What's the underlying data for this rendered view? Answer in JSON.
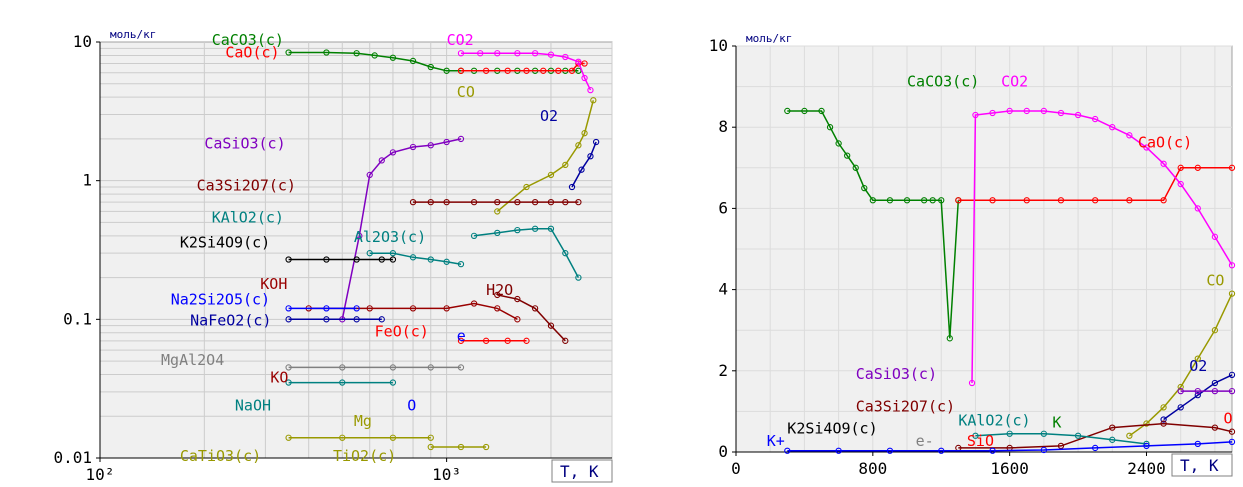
{
  "chart_data": [
    {
      "type": "line",
      "x_scale": "log",
      "y_scale": "log",
      "ylabel": "моль/кг",
      "xlabel": "T, K",
      "xlim": [
        100,
        3000
      ],
      "ylim": [
        0.01,
        10
      ],
      "grid": true,
      "x_ticks": [
        {
          "value": 100,
          "label": "10²"
        },
        {
          "value": 1000,
          "label": "10³"
        }
      ],
      "y_ticks": [
        {
          "value": 10,
          "label": "10"
        },
        {
          "value": 1,
          "label": "1"
        },
        {
          "value": 0.1,
          "label": "0.1"
        },
        {
          "value": 0.01,
          "label": "0.01"
        }
      ],
      "series": [
        {
          "name": "CaCO3(c)",
          "color": "#008000",
          "x": [
            350,
            450,
            550,
            620,
            700,
            800,
            900,
            1000,
            1100,
            1200,
            1400,
            1600,
            1800,
            2000,
            2200,
            2400
          ],
          "y": [
            8.4,
            8.4,
            8.3,
            8.0,
            7.7,
            7.3,
            6.6,
            6.2,
            6.2,
            6.2,
            6.2,
            6.2,
            6.2,
            6.2,
            6.2,
            6.2
          ]
        },
        {
          "name": "CaO(c)",
          "color": "#ff0000",
          "x": [
            1100,
            1300,
            1500,
            1700,
            1900,
            2100,
            2300,
            2400,
            2500
          ],
          "y": [
            6.2,
            6.2,
            6.2,
            6.2,
            6.2,
            6.2,
            6.2,
            7.0,
            7.0
          ]
        },
        {
          "name": "CO2",
          "color": "#ff00ff",
          "x": [
            1100,
            1250,
            1400,
            1600,
            1800,
            2000,
            2200,
            2400,
            2500,
            2600
          ],
          "y": [
            8.3,
            8.3,
            8.3,
            8.3,
            8.3,
            8.1,
            7.8,
            7.2,
            5.5,
            4.5
          ]
        },
        {
          "name": "CO",
          "color": "#999900",
          "x": [
            1400,
            1700,
            2000,
            2200,
            2400,
            2500,
            2650
          ],
          "y": [
            0.6,
            0.9,
            1.1,
            1.3,
            1.8,
            2.2,
            3.8
          ]
        },
        {
          "name": "O2",
          "color": "#0000a0",
          "x": [
            2300,
            2450,
            2600,
            2700
          ],
          "y": [
            0.9,
            1.2,
            1.5,
            1.9
          ]
        },
        {
          "name": "CaSiO3(c)",
          "color": "#8000c0",
          "x": [
            500,
            560,
            600,
            650,
            700,
            800,
            900,
            1000,
            1100
          ],
          "y": [
            0.1,
            0.4,
            1.1,
            1.4,
            1.6,
            1.75,
            1.8,
            1.9,
            2.0
          ]
        },
        {
          "name": "Ca3Si2O7(c)",
          "color": "#800000",
          "x": [
            800,
            900,
            1000,
            1200,
            1400,
            1600,
            1800,
            2000,
            2200,
            2400
          ],
          "y": [
            0.7,
            0.7,
            0.7,
            0.7,
            0.7,
            0.7,
            0.7,
            0.7,
            0.7,
            0.7
          ]
        },
        {
          "name": "KAlO2(c)",
          "color": "#008080",
          "x": [
            1200,
            1400,
            1600,
            1800,
            2000,
            2200,
            2400
          ],
          "y": [
            0.4,
            0.42,
            0.44,
            0.45,
            0.45,
            0.3,
            0.2
          ]
        },
        {
          "name": "K2Si4O9(c)",
          "color": "#000000",
          "x": [
            350,
            450,
            550,
            650,
            700
          ],
          "y": [
            0.27,
            0.27,
            0.27,
            0.27,
            0.27
          ]
        },
        {
          "name": "Al2O3(c)",
          "color": "#008080",
          "x": [
            600,
            700,
            800,
            900,
            1000,
            1100
          ],
          "y": [
            0.3,
            0.3,
            0.28,
            0.27,
            0.26,
            0.25
          ]
        },
        {
          "name": "KOH",
          "color": "#990000",
          "x": [
            400,
            600,
            800,
            1000,
            1200,
            1400,
            1600
          ],
          "y": [
            0.12,
            0.12,
            0.12,
            0.12,
            0.13,
            0.12,
            0.1
          ]
        },
        {
          "name": "Na2Si2O5(c)",
          "color": "#0000ff",
          "x": [
            350,
            450,
            550
          ],
          "y": [
            0.12,
            0.12,
            0.12
          ]
        },
        {
          "name": "NaFeO2(c)",
          "color": "#0000a0",
          "x": [
            350,
            450,
            550,
            650
          ],
          "y": [
            0.1,
            0.1,
            0.1,
            0.1
          ]
        },
        {
          "name": "H2O",
          "color": "#800000",
          "x": [
            1400,
            1600,
            1800,
            2000,
            2200
          ],
          "y": [
            0.15,
            0.14,
            0.12,
            0.09,
            0.07
          ]
        },
        {
          "name": "FeO(c)",
          "color": "#ff0000",
          "x": [
            1100,
            1300,
            1500,
            1700
          ],
          "y": [
            0.07,
            0.07,
            0.07,
            0.07
          ]
        },
        {
          "name": "MgAl2O4",
          "color": "#808080",
          "x": [
            350,
            500,
            700,
            900,
            1100
          ],
          "y": [
            0.045,
            0.045,
            0.045,
            0.045,
            0.045
          ]
        },
        {
          "name": "NaOH",
          "color": "#008080",
          "x": [
            350,
            500,
            700
          ],
          "y": [
            0.035,
            0.035,
            0.035
          ]
        },
        {
          "name": "CaTiO3(c)",
          "color": "#999900",
          "x": [
            350,
            500,
            700,
            900
          ],
          "y": [
            0.014,
            0.014,
            0.014,
            0.014
          ]
        },
        {
          "name": "TiO2(c)",
          "color": "#999900",
          "x": [
            900,
            1100,
            1300
          ],
          "y": [
            0.012,
            0.012,
            0.012
          ]
        }
      ],
      "labels": [
        {
          "text": "CaCO3(c)",
          "x": 210,
          "y": 9.5,
          "color": "#008000"
        },
        {
          "text": "CaO(c)",
          "x": 230,
          "y": 7.7,
          "color": "#ff0000"
        },
        {
          "text": "CO2",
          "x": 1000,
          "y": 9.5,
          "color": "#ff00ff"
        },
        {
          "text": "CO",
          "x": 1070,
          "y": 4.0,
          "color": "#999900"
        },
        {
          "text": "O2",
          "x": 1860,
          "y": 2.7,
          "color": "#0000a0"
        },
        {
          "text": "CaSiO3(c)",
          "x": 200,
          "y": 1.7,
          "color": "#8000c0"
        },
        {
          "text": "Ca3Si2O7(c)",
          "x": 190,
          "y": 0.85,
          "color": "#800000"
        },
        {
          "text": "KAlO2(c)",
          "x": 210,
          "y": 0.5,
          "color": "#008080"
        },
        {
          "text": "K2Si4O9(c)",
          "x": 170,
          "y": 0.33,
          "color": "#000000"
        },
        {
          "text": "Al2O3(c)",
          "x": 540,
          "y": 0.36,
          "color": "#008080"
        },
        {
          "text": "KOH",
          "x": 290,
          "y": 0.165,
          "color": "#990000"
        },
        {
          "text": "Na2Si2O5(c)",
          "x": 160,
          "y": 0.128,
          "color": "#0000ff"
        },
        {
          "text": "H2O",
          "x": 1300,
          "y": 0.15,
          "color": "#800000"
        },
        {
          "text": "NaFeO2(c)",
          "x": 182,
          "y": 0.09,
          "color": "#0000a0"
        },
        {
          "text": "FeO(c)",
          "x": 620,
          "y": 0.075,
          "color": "#ff0000"
        },
        {
          "text": "e",
          "x": 1070,
          "y": 0.07,
          "color": "#0000ff"
        },
        {
          "text": "MgAl2O4",
          "x": 150,
          "y": 0.047,
          "color": "#808080"
        },
        {
          "text": "KO",
          "x": 310,
          "y": 0.035,
          "color": "#990000"
        },
        {
          "text": "NaOH",
          "x": 245,
          "y": 0.022,
          "color": "#008080"
        },
        {
          "text": "O",
          "x": 770,
          "y": 0.022,
          "color": "#0000ff"
        },
        {
          "text": "Mg",
          "x": 540,
          "y": 0.017,
          "color": "#999900"
        },
        {
          "text": "CaTiO3(c)",
          "x": 170,
          "y": 0.0095,
          "color": "#999900"
        },
        {
          "text": "TiO2(c)",
          "x": 470,
          "y": 0.0095,
          "color": "#999900"
        }
      ]
    },
    {
      "type": "line",
      "ylabel": "моль/кг",
      "xlabel": "T, K",
      "xlim": [
        0,
        2900
      ],
      "ylim": [
        0,
        10
      ],
      "grid": true,
      "x_ticks": [
        {
          "value": 0,
          "label": "0"
        },
        {
          "value": 800,
          "label": "800"
        },
        {
          "value": 1600,
          "label": "1600"
        },
        {
          "value": 2400,
          "label": "2400"
        }
      ],
      "y_ticks": [
        {
          "value": 0,
          "label": "0"
        },
        {
          "value": 2,
          "label": "2"
        },
        {
          "value": 4,
          "label": "4"
        },
        {
          "value": 6,
          "label": "6"
        },
        {
          "value": 8,
          "label": "8"
        },
        {
          "value": 10,
          "label": "10"
        }
      ],
      "series": [
        {
          "name": "CaCO3(c)",
          "color": "#008000",
          "x": [
            300,
            400,
            500,
            550,
            600,
            650,
            700,
            750,
            800,
            900,
            1000,
            1100,
            1150,
            1200,
            1250,
            1300
          ],
          "y": [
            8.4,
            8.4,
            8.4,
            8.0,
            7.6,
            7.3,
            7.0,
            6.5,
            6.2,
            6.2,
            6.2,
            6.2,
            6.2,
            6.2,
            2.8,
            6.2
          ]
        },
        {
          "name": "CaO(c)",
          "color": "#ff0000",
          "x": [
            1300,
            1500,
            1700,
            1900,
            2100,
            2300,
            2500,
            2600,
            2700,
            2900
          ],
          "y": [
            6.2,
            6.2,
            6.2,
            6.2,
            6.2,
            6.2,
            6.2,
            7.0,
            7.0,
            7.0
          ]
        },
        {
          "name": "CO2",
          "color": "#ff00ff",
          "x": [
            1380,
            1400,
            1500,
            1600,
            1700,
            1800,
            1900,
            2000,
            2100,
            2200,
            2300,
            2400,
            2500,
            2600,
            2700,
            2800,
            2900
          ],
          "y": [
            1.7,
            8.3,
            8.35,
            8.4,
            8.4,
            8.4,
            8.35,
            8.3,
            8.2,
            8.0,
            7.8,
            7.5,
            7.1,
            6.6,
            6.0,
            5.3,
            4.6
          ]
        },
        {
          "name": "CO",
          "color": "#999900",
          "x": [
            2300,
            2400,
            2500,
            2600,
            2700,
            2800,
            2900
          ],
          "y": [
            0.4,
            0.7,
            1.1,
            1.6,
            2.3,
            3.0,
            3.9
          ]
        },
        {
          "name": "O2",
          "color": "#0000a0",
          "x": [
            2500,
            2600,
            2700,
            2800,
            2900
          ],
          "y": [
            0.8,
            1.1,
            1.4,
            1.7,
            1.9
          ]
        },
        {
          "name": "CaSiO3(c)",
          "color": "#8000c0",
          "x": [
            2600,
            2700,
            2800,
            2900
          ],
          "y": [
            1.5,
            1.5,
            1.5,
            1.5
          ]
        },
        {
          "name": "Ca3Si2O7(c)",
          "color": "#800000",
          "x": [
            1300,
            1600,
            1900,
            2200,
            2500,
            2800,
            2900
          ],
          "y": [
            0.1,
            0.1,
            0.15,
            0.6,
            0.7,
            0.6,
            0.5
          ]
        },
        {
          "name": "KAlO2(c)",
          "color": "#008080",
          "x": [
            1400,
            1600,
            1800,
            2000,
            2200,
            2400
          ],
          "y": [
            0.4,
            0.45,
            0.45,
            0.4,
            0.3,
            0.2
          ]
        },
        {
          "name": "K+",
          "color": "#0000ff",
          "x": [
            300,
            600,
            900,
            1200,
            1500,
            1800,
            2100,
            2400,
            2700,
            2900
          ],
          "y": [
            0.03,
            0.03,
            0.03,
            0.03,
            0.03,
            0.05,
            0.1,
            0.15,
            0.2,
            0.25
          ]
        }
      ],
      "labels": [
        {
          "text": "CaCO3(c)",
          "x": 1000,
          "y": 9.0,
          "color": "#008000"
        },
        {
          "text": "CO2",
          "x": 1550,
          "y": 9.0,
          "color": "#ff00ff"
        },
        {
          "text": "CaO(c)",
          "x": 2350,
          "y": 7.5,
          "color": "#ff0000"
        },
        {
          "text": "CO",
          "x": 2750,
          "y": 4.1,
          "color": "#999900"
        },
        {
          "text": "O2",
          "x": 2650,
          "y": 2.0,
          "color": "#0000a0"
        },
        {
          "text": "CaSiO3(c)",
          "x": 700,
          "y": 1.8,
          "color": "#8000c0"
        },
        {
          "text": "Ca3Si2O7(c)",
          "x": 700,
          "y": 1.0,
          "color": "#800000"
        },
        {
          "text": "K2Si4O9(c)",
          "x": 300,
          "y": 0.45,
          "color": "#000000"
        },
        {
          "text": "KAlO2(c)",
          "x": 1300,
          "y": 0.65,
          "color": "#008080"
        },
        {
          "text": "K+",
          "x": 180,
          "y": 0.15,
          "color": "#0000ff"
        },
        {
          "text": "e-",
          "x": 1050,
          "y": 0.15,
          "color": "#808080"
        },
        {
          "text": "SiO",
          "x": 1350,
          "y": 0.15,
          "color": "#ff0000"
        },
        {
          "text": "K",
          "x": 1850,
          "y": 0.6,
          "color": "#008000"
        },
        {
          "text": "O",
          "x": 2850,
          "y": 0.7,
          "color": "#ff0000"
        }
      ]
    }
  ]
}
